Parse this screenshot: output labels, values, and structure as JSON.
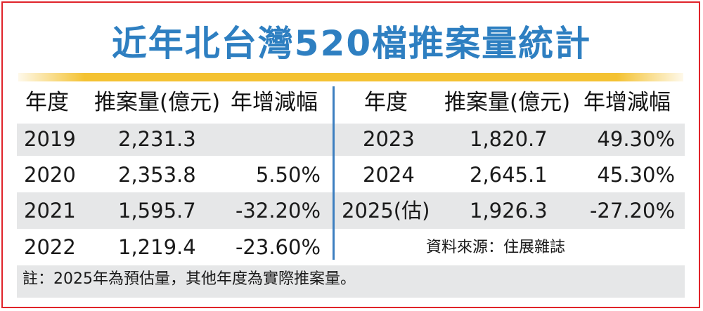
{
  "title": "近年北台灣520檔推案量統計",
  "headers": {
    "year": "年度",
    "volume": "推案量(億元)",
    "growth": "年增減幅"
  },
  "left_rows": [
    {
      "year": "2019",
      "volume": "2,231.3",
      "growth": ""
    },
    {
      "year": "2020",
      "volume": "2,353.8",
      "growth": "5.50%"
    },
    {
      "year": "2021",
      "volume": "1,595.7",
      "growth": "-32.20%"
    },
    {
      "year": "2022",
      "volume": "1,219.4",
      "growth": "-23.60%"
    }
  ],
  "right_rows": [
    {
      "year": "2023",
      "volume": "1,820.7",
      "growth": "49.30%"
    },
    {
      "year": "2024",
      "volume": "2,645.1",
      "growth": "45.30%"
    },
    {
      "year": "2025(估)",
      "volume": "1,926.3",
      "growth": "-27.20%"
    }
  ],
  "source": "資料來源：住展雜誌",
  "note": "註：2025年為預估量，其他年度為實際推案量。",
  "colors": {
    "title": "#2e7fc1",
    "frame": "#e0232a",
    "rule": "#f4c232",
    "band": "#e6e7e8",
    "divider": "#3d7fc0"
  }
}
